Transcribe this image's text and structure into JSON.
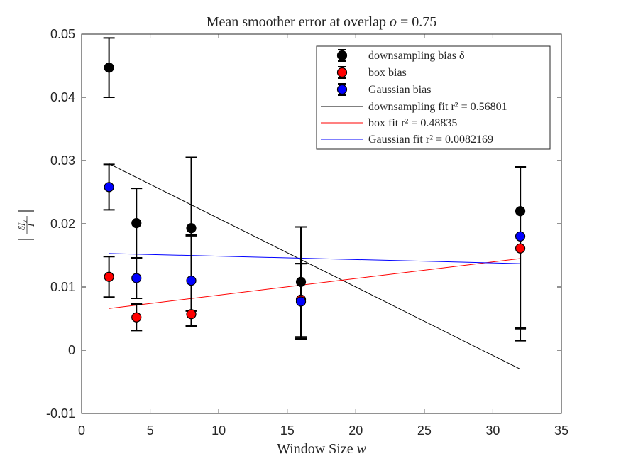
{
  "chart_data": {
    "type": "scatter",
    "title": "Mean smoother error at overlap o = 0.75",
    "xlabel": "Window Size w",
    "ylabel": "|δI_x / I|",
    "xlim": [
      0,
      35
    ],
    "ylim": [
      -0.01,
      0.05
    ],
    "xticks": [
      0,
      5,
      10,
      15,
      20,
      25,
      30,
      35
    ],
    "yticks": [
      -0.01,
      0,
      0.01,
      0.02,
      0.03,
      0.04,
      0.05
    ],
    "xtick_labels": [
      "0",
      "5",
      "10",
      "15",
      "20",
      "25",
      "30",
      "35"
    ],
    "ytick_labels": [
      "-0.01",
      "0",
      "0.01",
      "0.02",
      "0.03",
      "0.04",
      "0.05"
    ],
    "grid": false,
    "legend_position": "top-right",
    "x": [
      2,
      4,
      8,
      16,
      32
    ],
    "series": [
      {
        "name": "downsampling bias δ",
        "kind": "errorbar",
        "color": "#000000",
        "values": [
          0.0447,
          0.0201,
          0.0193,
          0.0108,
          0.022
        ],
        "err_low": [
          0.0047,
          0.0055,
          0.0131,
          0.0087,
          0.0186
        ],
        "err_high": [
          0.0047,
          0.0055,
          0.0112,
          0.0087,
          0.0069
        ]
      },
      {
        "name": "box bias",
        "kind": "errorbar",
        "color": "#ff0000",
        "values": [
          0.0116,
          0.0052,
          0.0057,
          0.008,
          0.0161
        ],
        "err_low": [
          0.0032,
          0.0021,
          0.0018,
          0.0063,
          0.0126
        ],
        "err_high": [
          0.0032,
          0.0021,
          0.0124,
          0.0057,
          0.0129
        ]
      },
      {
        "name": "Gaussian bias",
        "kind": "errorbar",
        "color": "#0000ff",
        "values": [
          0.0258,
          0.0114,
          0.011,
          0.0077,
          0.018
        ],
        "err_low": [
          0.0036,
          0.0032,
          0.0072,
          0.0058,
          0.0165
        ],
        "err_high": [
          0.0036,
          0.0032,
          0.0072,
          0.006,
          0.011
        ]
      },
      {
        "name": "downsampling fit r² = 0.56801",
        "kind": "line",
        "color": "#000000",
        "x": [
          2,
          32
        ],
        "values": [
          0.0295,
          -0.003
        ]
      },
      {
        "name": "box fit r² = 0.48835",
        "kind": "line",
        "color": "#ff0000",
        "x": [
          2,
          32
        ],
        "values": [
          0.0066,
          0.0145
        ]
      },
      {
        "name": "Gaussian fit r² = 0.0082169",
        "kind": "line",
        "color": "#0000ff",
        "x": [
          2,
          32
        ],
        "values": [
          0.0153,
          0.0137
        ]
      }
    ]
  }
}
